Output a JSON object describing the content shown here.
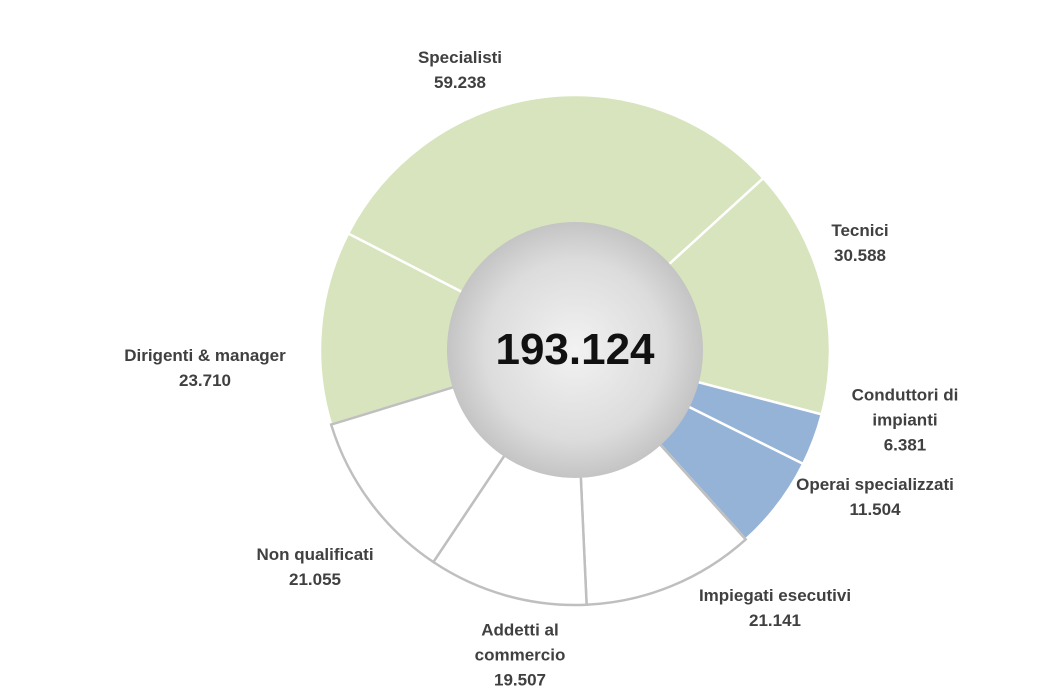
{
  "chart_data": {
    "type": "pie",
    "total": {
      "value": 193124,
      "label": "193.124"
    },
    "categories": [
      "Dirigenti & manager",
      "Specialisti",
      "Tecnici",
      "Conduttori di impianti",
      "Operai specializzati",
      "Impiegati esecutivi",
      "Addetti al commercio",
      "Non qualificati"
    ],
    "values": [
      23710,
      59238,
      30588,
      6381,
      11504,
      21141,
      19507,
      21055
    ],
    "value_labels": [
      "23.710",
      "59.238",
      "30.588",
      "6.381",
      "11.504",
      "21.141",
      "19.507",
      "21.055"
    ],
    "colors": [
      "#d7e4bd",
      "#d7e4bd",
      "#d7e4bd",
      "#95b3d7",
      "#95b3d7",
      "#ffffff",
      "#ffffff",
      "#ffffff"
    ]
  }
}
